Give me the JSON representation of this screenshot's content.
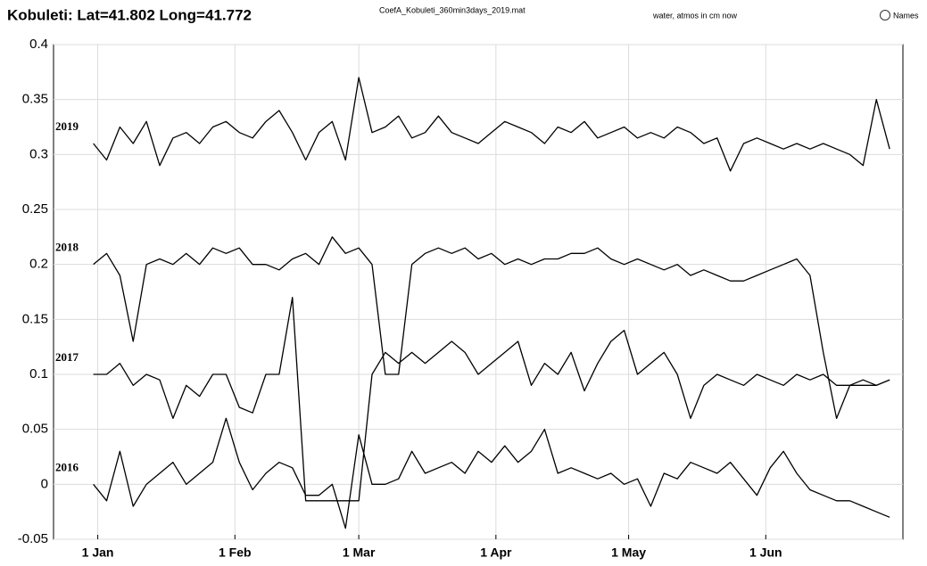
{
  "chart_data": {
    "type": "line",
    "title": "Kobuleti: Lat=41.802 Long=41.772",
    "subtitle": "CoefA_Kobuleti_360min3days_2019.mat",
    "note": "water, atmos in cm now",
    "names_option": "Names",
    "x": [
      -1,
      2,
      5,
      8,
      11,
      14,
      17,
      20,
      23,
      26,
      29,
      32,
      35,
      38,
      41,
      44,
      47,
      50,
      53,
      56,
      59,
      62,
      65,
      68,
      71,
      74,
      77,
      80,
      83,
      86,
      89,
      92,
      95,
      98,
      101,
      104,
      107,
      110,
      113,
      116,
      119,
      122,
      125,
      128,
      131,
      134,
      137,
      140,
      143,
      146,
      149,
      152,
      155,
      158,
      161,
      164,
      167,
      170,
      173,
      176,
      179
    ],
    "series": [
      {
        "name": "2019",
        "color": "#000000",
        "values": [
          0.31,
          0.295,
          0.325,
          0.31,
          0.33,
          0.29,
          0.315,
          0.32,
          0.31,
          0.325,
          0.33,
          0.32,
          0.315,
          0.33,
          0.34,
          0.32,
          0.295,
          0.32,
          0.33,
          0.295,
          0.37,
          0.32,
          0.325,
          0.335,
          0.315,
          0.32,
          0.335,
          0.32,
          0.315,
          0.31,
          0.32,
          0.33,
          0.325,
          0.32,
          0.31,
          0.325,
          0.32,
          0.33,
          0.315,
          0.32,
          0.325,
          0.315,
          0.32,
          0.315,
          0.325,
          0.32,
          0.31,
          0.315,
          0.285,
          0.31,
          0.315,
          0.31,
          0.305,
          0.31,
          0.305,
          0.31,
          0.305,
          0.3,
          0.29,
          0.35,
          0.305
        ]
      },
      {
        "name": "2018",
        "color": "#000000",
        "values": [
          0.2,
          0.21,
          0.19,
          0.13,
          0.2,
          0.205,
          0.2,
          0.21,
          0.2,
          0.215,
          0.21,
          0.215,
          0.2,
          0.2,
          0.195,
          0.205,
          0.21,
          0.2,
          0.225,
          0.21,
          0.215,
          0.2,
          0.1,
          0.1,
          0.2,
          0.21,
          0.215,
          0.21,
          0.215,
          0.205,
          0.21,
          0.2,
          0.205,
          0.2,
          0.205,
          0.205,
          0.21,
          0.21,
          0.215,
          0.205,
          0.2,
          0.205,
          0.2,
          0.195,
          0.2,
          0.19,
          0.195,
          0.19,
          0.185,
          0.185,
          0.19,
          0.195,
          0.2,
          0.205,
          0.19,
          0.12,
          0.06,
          0.09,
          0.09,
          0.09,
          0.095
        ]
      },
      {
        "name": "2017",
        "color": "#000000",
        "values": [
          0.1,
          0.1,
          0.11,
          0.09,
          0.1,
          0.095,
          0.06,
          0.09,
          0.08,
          0.1,
          0.1,
          0.07,
          0.065,
          0.1,
          0.1,
          0.17,
          -0.015,
          -0.015,
          -0.015,
          -0.015,
          -0.015,
          0.1,
          0.12,
          0.11,
          0.12,
          0.11,
          0.12,
          0.13,
          0.12,
          0.1,
          0.11,
          0.12,
          0.13,
          0.09,
          0.11,
          0.1,
          0.12,
          0.085,
          0.11,
          0.13,
          0.14,
          0.1,
          0.11,
          0.12,
          0.1,
          0.06,
          0.09,
          0.1,
          0.095,
          0.09,
          0.1,
          0.095,
          0.09,
          0.1,
          0.095,
          0.1,
          0.09,
          0.09,
          0.095,
          0.09,
          0.095
        ]
      },
      {
        "name": "2016",
        "color": "#000000",
        "values": [
          0.0,
          -0.015,
          0.03,
          -0.02,
          0.0,
          0.01,
          0.02,
          0.0,
          0.01,
          0.02,
          0.06,
          0.02,
          -0.005,
          0.01,
          0.02,
          0.015,
          -0.01,
          -0.01,
          0.0,
          -0.04,
          0.045,
          0.0,
          0.0,
          0.005,
          0.03,
          0.01,
          0.015,
          0.02,
          0.01,
          0.03,
          0.02,
          0.035,
          0.02,
          0.03,
          0.05,
          0.01,
          0.015,
          0.01,
          0.005,
          0.01,
          0.0,
          0.005,
          -0.02,
          0.01,
          0.005,
          0.02,
          0.015,
          0.01,
          0.02,
          0.005,
          -0.01,
          0.015,
          0.03,
          0.01,
          -0.005,
          -0.01,
          -0.015,
          -0.015,
          -0.02,
          -0.025,
          -0.03
        ]
      }
    ],
    "xlim": [
      -10,
      182
    ],
    "xticks": [
      {
        "value": 0,
        "label": "1 Jan"
      },
      {
        "value": 31,
        "label": "1 Feb"
      },
      {
        "value": 59,
        "label": "1 Mar"
      },
      {
        "value": 90,
        "label": "1 Apr"
      },
      {
        "value": 120,
        "label": "1 May"
      },
      {
        "value": 151,
        "label": "1 Jun"
      }
    ],
    "ylim": [
      -0.05,
      0.4
    ],
    "yticks": [
      -0.05,
      0,
      0.05,
      0.1,
      0.15,
      0.2,
      0.25,
      0.3,
      0.35,
      0.4
    ],
    "grid": true
  }
}
